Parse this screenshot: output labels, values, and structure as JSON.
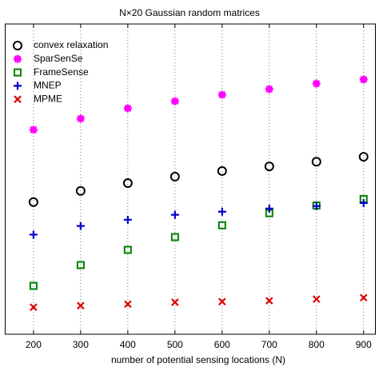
{
  "chart_data": {
    "type": "scatter",
    "title": "N×20 Gaussian random matrices",
    "x_label": "number of potential sensing locations (N)",
    "x": [
      200,
      300,
      400,
      500,
      600,
      700,
      800,
      900
    ],
    "xlim": [
      140,
      925
    ],
    "xticks": [
      200,
      300,
      400,
      500,
      600,
      700,
      800,
      900
    ],
    "ylim": [
      0,
      100
    ],
    "grid": true,
    "legend": "upper left",
    "series": [
      {
        "name": "convex relaxation",
        "color": "#000000",
        "marker": "o",
        "values": [
          42.6,
          46.2,
          48.7,
          50.8,
          52.6,
          54.1,
          55.6,
          57.2
        ]
      },
      {
        "name": "SparSenSe",
        "color": "#ff00ff",
        "marker": "*",
        "values": [
          65.9,
          69.5,
          72.8,
          75.1,
          77.2,
          79.0,
          80.8,
          82.1
        ]
      },
      {
        "name": "FrameSense",
        "color": "#008000",
        "marker": "s",
        "values": [
          15.6,
          22.3,
          27.2,
          31.3,
          35.1,
          39.0,
          41.5,
          43.6
        ]
      },
      {
        "name": "MNEP",
        "color": "#0000cc",
        "marker": "+",
        "values": [
          32.1,
          34.9,
          36.9,
          38.5,
          39.5,
          40.5,
          41.3,
          42.3
        ]
      },
      {
        "name": "MPME",
        "color": "#dd0000",
        "marker": "x",
        "values": [
          8.7,
          9.2,
          9.7,
          10.3,
          10.5,
          10.8,
          11.3,
          11.8
        ]
      }
    ]
  }
}
